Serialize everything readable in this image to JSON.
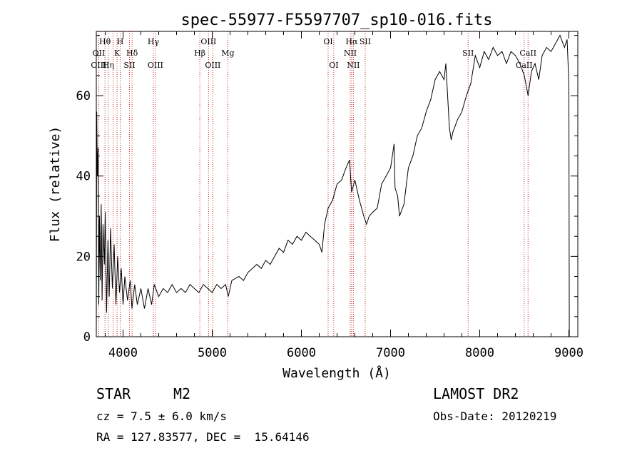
{
  "chart_data": {
    "type": "line",
    "title": "spec-55977-F5597707_sp10-016.fits",
    "xlabel": "Wavelength (Å)",
    "ylabel": "Flux (relative)",
    "xlim": [
      3700,
      9100
    ],
    "ylim": [
      0,
      76
    ],
    "x_ticks": [
      4000,
      5000,
      6000,
      7000,
      8000,
      9000
    ],
    "y_ticks": [
      0,
      20,
      40,
      60
    ],
    "grid": false,
    "series": [
      {
        "line_color": "#000000",
        "points": [
          [
            3700,
            0
          ],
          [
            3705,
            56
          ],
          [
            3712,
            40
          ],
          [
            3720,
            47
          ],
          [
            3728,
            8
          ],
          [
            3735,
            30
          ],
          [
            3745,
            14
          ],
          [
            3755,
            33
          ],
          [
            3765,
            9
          ],
          [
            3775,
            28
          ],
          [
            3790,
            18
          ],
          [
            3800,
            31
          ],
          [
            3815,
            6
          ],
          [
            3830,
            24
          ],
          [
            3845,
            10
          ],
          [
            3860,
            27
          ],
          [
            3880,
            12
          ],
          [
            3900,
            23
          ],
          [
            3920,
            8
          ],
          [
            3940,
            20
          ],
          [
            3960,
            11
          ],
          [
            3980,
            17
          ],
          [
            4000,
            8
          ],
          [
            4020,
            15
          ],
          [
            4050,
            9
          ],
          [
            4080,
            14
          ],
          [
            4100,
            7
          ],
          [
            4130,
            13
          ],
          [
            4160,
            8
          ],
          [
            4200,
            12
          ],
          [
            4240,
            7
          ],
          [
            4280,
            12
          ],
          [
            4320,
            8
          ],
          [
            4350,
            13
          ],
          [
            4400,
            10
          ],
          [
            4450,
            12
          ],
          [
            4500,
            11
          ],
          [
            4550,
            13
          ],
          [
            4600,
            11
          ],
          [
            4650,
            12
          ],
          [
            4700,
            11
          ],
          [
            4750,
            13
          ],
          [
            4800,
            12
          ],
          [
            4850,
            11
          ],
          [
            4900,
            13
          ],
          [
            4950,
            12
          ],
          [
            5000,
            11
          ],
          [
            5050,
            13
          ],
          [
            5100,
            12
          ],
          [
            5150,
            13
          ],
          [
            5180,
            10
          ],
          [
            5220,
            14
          ],
          [
            5300,
            15
          ],
          [
            5350,
            14
          ],
          [
            5400,
            16
          ],
          [
            5450,
            17
          ],
          [
            5500,
            18
          ],
          [
            5550,
            17
          ],
          [
            5600,
            19
          ],
          [
            5650,
            18
          ],
          [
            5700,
            20
          ],
          [
            5750,
            22
          ],
          [
            5800,
            21
          ],
          [
            5850,
            24
          ],
          [
            5900,
            23
          ],
          [
            5950,
            25
          ],
          [
            6000,
            24
          ],
          [
            6050,
            26
          ],
          [
            6100,
            25
          ],
          [
            6150,
            24
          ],
          [
            6200,
            23
          ],
          [
            6230,
            21
          ],
          [
            6260,
            28
          ],
          [
            6300,
            32
          ],
          [
            6350,
            34
          ],
          [
            6400,
            38
          ],
          [
            6450,
            39
          ],
          [
            6500,
            42
          ],
          [
            6540,
            44
          ],
          [
            6563,
            36
          ],
          [
            6600,
            39
          ],
          [
            6650,
            34
          ],
          [
            6700,
            30
          ],
          [
            6730,
            28
          ],
          [
            6760,
            30
          ],
          [
            6800,
            31
          ],
          [
            6850,
            32
          ],
          [
            6900,
            38
          ],
          [
            6950,
            40
          ],
          [
            7000,
            42
          ],
          [
            7040,
            48
          ],
          [
            7050,
            37
          ],
          [
            7080,
            35
          ],
          [
            7100,
            30
          ],
          [
            7150,
            33
          ],
          [
            7200,
            42
          ],
          [
            7250,
            45
          ],
          [
            7300,
            50
          ],
          [
            7350,
            52
          ],
          [
            7400,
            56
          ],
          [
            7450,
            59
          ],
          [
            7500,
            64
          ],
          [
            7550,
            66
          ],
          [
            7600,
            64
          ],
          [
            7620,
            68
          ],
          [
            7660,
            52
          ],
          [
            7680,
            49
          ],
          [
            7700,
            51
          ],
          [
            7750,
            54
          ],
          [
            7800,
            56
          ],
          [
            7850,
            60
          ],
          [
            7900,
            63
          ],
          [
            7950,
            70
          ],
          [
            8000,
            67
          ],
          [
            8050,
            71
          ],
          [
            8100,
            69
          ],
          [
            8150,
            72
          ],
          [
            8200,
            70
          ],
          [
            8250,
            71
          ],
          [
            8300,
            68
          ],
          [
            8350,
            71
          ],
          [
            8400,
            70
          ],
          [
            8450,
            68
          ],
          [
            8500,
            65
          ],
          [
            8542,
            60
          ],
          [
            8580,
            66
          ],
          [
            8620,
            68
          ],
          [
            8662,
            64
          ],
          [
            8700,
            70
          ],
          [
            8750,
            72
          ],
          [
            8800,
            71
          ],
          [
            8850,
            73
          ],
          [
            8900,
            75
          ],
          [
            8950,
            72
          ],
          [
            8980,
            74
          ],
          [
            9000,
            63
          ],
          [
            9005,
            0
          ]
        ]
      }
    ],
    "annotations": [
      {
        "label": "Hθ",
        "x": 3797,
        "row": 1
      },
      {
        "label": "H",
        "x": 3968,
        "row": 1
      },
      {
        "label": "Hγ",
        "x": 4340,
        "row": 1
      },
      {
        "label": "OIII",
        "x": 4959,
        "row": 1
      },
      {
        "label": "OI",
        "x": 6300,
        "row": 1
      },
      {
        "label": "Hα",
        "x": 6563,
        "row": 1
      },
      {
        "label": "SII",
        "x": 6716,
        "row": 1
      },
      {
        "label": "OII",
        "x": 3727,
        "row": 2
      },
      {
        "label": "K",
        "x": 3933,
        "row": 2
      },
      {
        "label": "Hδ",
        "x": 4101,
        "row": 2
      },
      {
        "label": "Hβ",
        "x": 4861,
        "row": 2
      },
      {
        "label": "Mg",
        "x": 5175,
        "row": 2
      },
      {
        "label": "NII",
        "x": 6548,
        "row": 2
      },
      {
        "label": "SII",
        "x": 7870,
        "row": 2
      },
      {
        "label": "CaII",
        "x": 8542,
        "row": 2
      },
      {
        "label": "OIII",
        "x": 3727,
        "row": 3
      },
      {
        "label": "Hη",
        "x": 3835,
        "row": 3
      },
      {
        "label": "SII",
        "x": 4072,
        "row": 3
      },
      {
        "label": "OIII",
        "x": 4363,
        "row": 3
      },
      {
        "label": "OIII",
        "x": 5007,
        "row": 3
      },
      {
        "label": "OI",
        "x": 6363,
        "row": 3
      },
      {
        "label": "NII",
        "x": 6583,
        "row": 3
      },
      {
        "label": "CaII",
        "x": 8498,
        "row": 3
      }
    ],
    "line_marker_x": [
      3727,
      3797,
      3835,
      3889,
      3933,
      3968,
      4072,
      4101,
      4340,
      4363,
      4861,
      4959,
      5007,
      5175,
      6300,
      6363,
      6548,
      6563,
      6583,
      6716,
      7870,
      8498,
      8542
    ]
  },
  "info": {
    "class": "STAR",
    "subclass": "M2",
    "survey": "LAMOST DR2",
    "cz": "cz = 7.5 ± 6.0 km/s",
    "obs_date": "Obs-Date: 20120219",
    "coords": "RA = 127.83577, DEC =  15.64146"
  },
  "colors": {
    "marker_line": "#cc2222",
    "axis": "#000000",
    "spectrum": "#000000"
  }
}
